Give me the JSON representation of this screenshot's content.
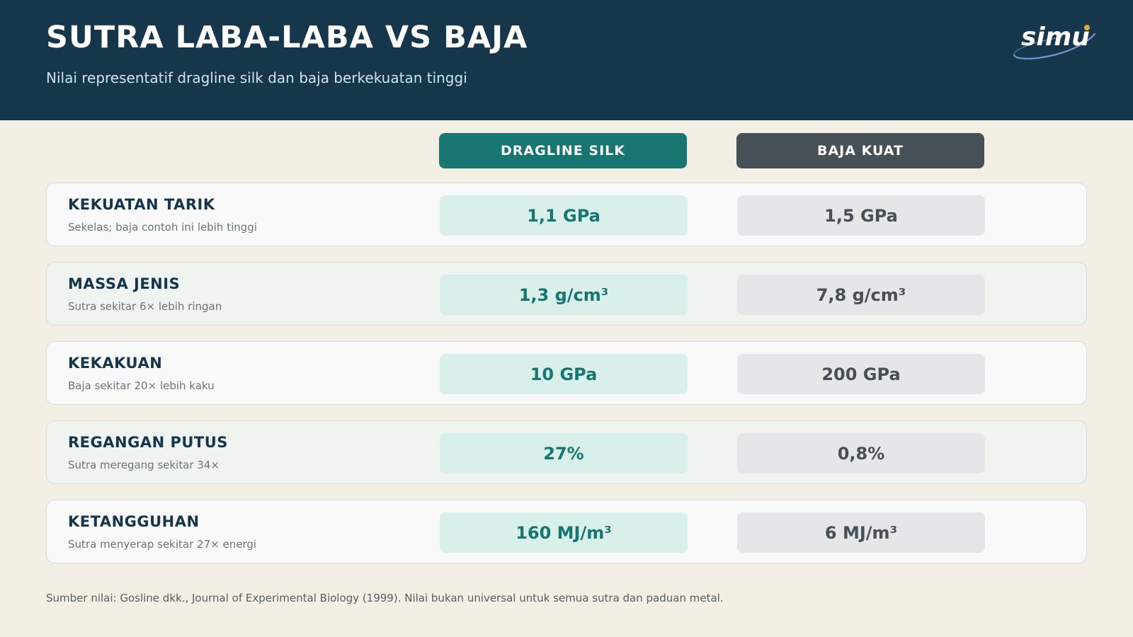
{
  "header": {
    "title": "SUTRA LABA-LABA VS BAJA",
    "subtitle": "Nilai representatif dragline silk dan baja berkekuatan tinggi",
    "logo_text": "simu"
  },
  "columns": {
    "silk": "DRAGLINE SILK",
    "steel": "BAJA KUAT"
  },
  "rows": [
    {
      "label": "KEKUATAN TARIK",
      "note": "Sekelas; baja contoh ini lebih tinggi",
      "silk": "1,1 GPa",
      "steel": "1,5 GPa"
    },
    {
      "label": "MASSA JENIS",
      "note": "Sutra sekitar 6× lebih ringan",
      "silk": "1,3 g/cm³",
      "steel": "7,8 g/cm³"
    },
    {
      "label": "KEKAKUAN",
      "note": "Baja sekitar 20× lebih kaku",
      "silk": "10 GPa",
      "steel": "200 GPa"
    },
    {
      "label": "REGANGAN PUTUS",
      "note": "Sutra meregang sekitar 34×",
      "silk": "27%",
      "steel": "0,8%"
    },
    {
      "label": "KETANGGUHAN",
      "note": "Sutra menyerap sekitar 27× energi",
      "silk": "160 MJ/m³",
      "steel": "6 MJ/m³"
    }
  ],
  "footer": "Sumber nilai: Gosline dkk., Journal of Experimental Biology (1999). Nilai bukan universal untuk semua sutra dan paduan metal.",
  "colors": {
    "header_bg": "#15364b",
    "silk_accent": "#187670",
    "steel_accent": "#474f57",
    "page_bg": "#f3efe4"
  }
}
